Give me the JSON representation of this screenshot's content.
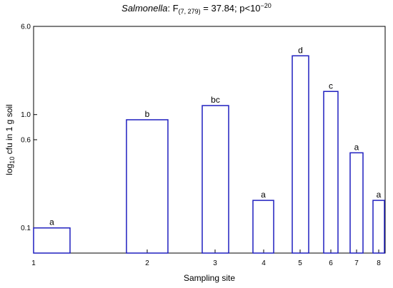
{
  "title": {
    "organism": "Salmonella",
    "stat_prefix": ": F",
    "df": "(7, 279)",
    "stat_value": " = 37.84; p<10",
    "p_exponent": "−20"
  },
  "chart_data": {
    "type": "bar",
    "title": "Salmonella: F(7, 279) = 37.84; p<10−20",
    "xlabel": "Sampling site",
    "ylabel": "log10 cfu in 1 g soil",
    "ylabel_base": "log",
    "ylabel_sub": "10",
    "ylabel_rest": " cfu in 1 g soil",
    "y_scale": "log",
    "ylim": [
      0.06,
      6.0
    ],
    "y_ticks": [
      0.1,
      0.6,
      1.0,
      6.0
    ],
    "y_tick_labels": [
      "0.1",
      "0.6",
      "1.0",
      "6.0"
    ],
    "categories": [
      "1",
      "2",
      "3",
      "4",
      "5",
      "6",
      "7",
      "8"
    ],
    "values": [
      0.1,
      0.9,
      1.2,
      0.175,
      3.3,
      1.6,
      0.46,
      0.175
    ],
    "group_letters": [
      "a",
      "b",
      "bc",
      "a",
      "d",
      "c",
      "a",
      "a"
    ],
    "bar_color": "#1f1fbf",
    "grid": false
  }
}
